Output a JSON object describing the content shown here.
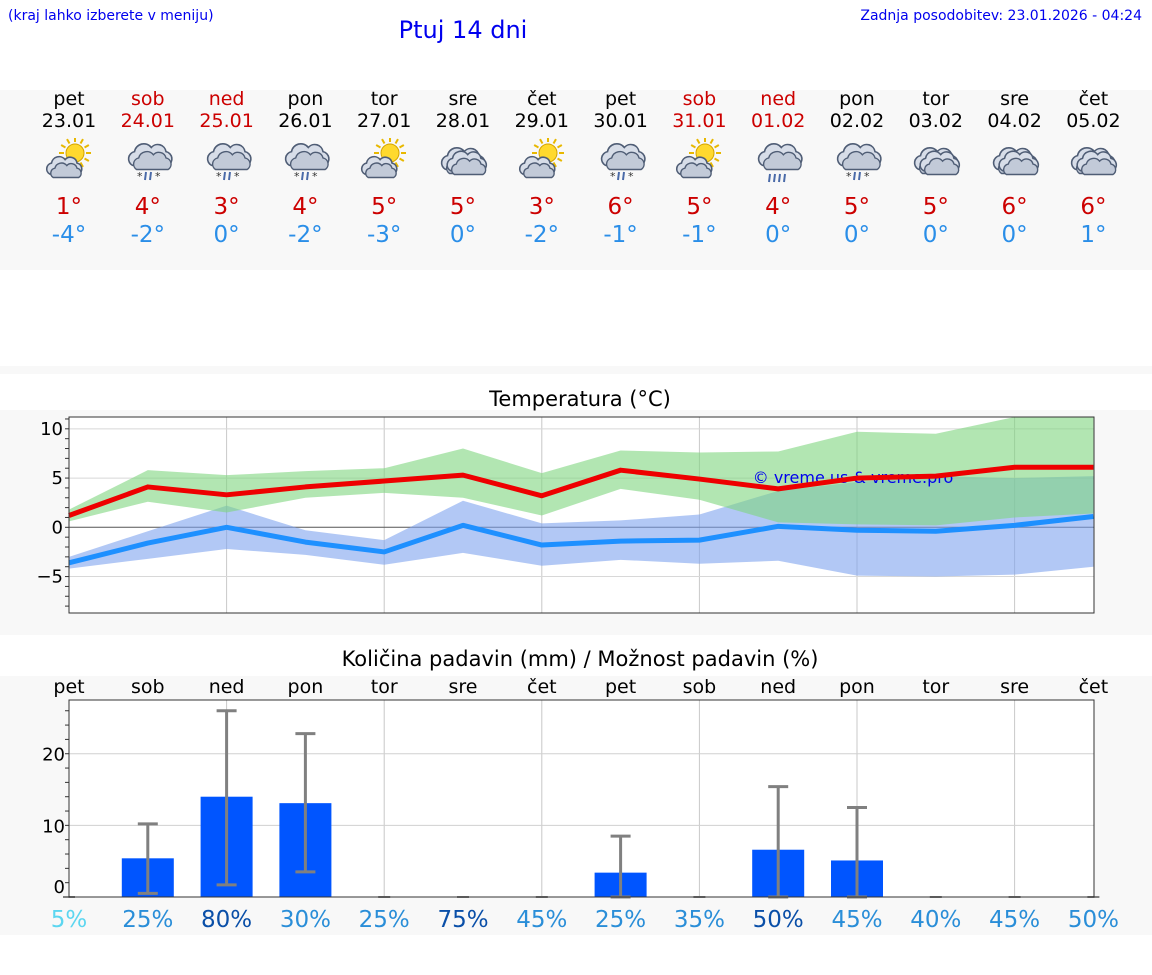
{
  "header": {
    "left_note": "(kraj lahko izberete v meniju)",
    "title": "Ptuj 14 dni",
    "last_update": "Zadnja posodobitev: 23.01.2026 - 04:24"
  },
  "colors": {
    "link": "#0000ee",
    "weekend": "#cc0000",
    "tmax": "#cc0000",
    "tmin": "#2a8ee8",
    "max_line": "#ee0000",
    "min_line": "#1e90ff",
    "max_band": "#7ed67e",
    "min_band": "#7fa4ee",
    "bar": "#0055ff",
    "error_bar": "#808080"
  },
  "days": [
    {
      "name": "pet",
      "date": "23.01",
      "weekend": false,
      "icon": "partly-cloudy-sun-icon",
      "tmax": "1°",
      "tmin": "-4°"
    },
    {
      "name": "sob",
      "date": "24.01",
      "weekend": true,
      "icon": "snow-rain-cloud-icon",
      "tmax": "4°",
      "tmin": "-2°"
    },
    {
      "name": "ned",
      "date": "25.01",
      "weekend": true,
      "icon": "snow-rain-cloud-icon",
      "tmax": "3°",
      "tmin": "0°"
    },
    {
      "name": "pon",
      "date": "26.01",
      "weekend": false,
      "icon": "snow-rain-cloud-icon",
      "tmax": "4°",
      "tmin": "-2°"
    },
    {
      "name": "tor",
      "date": "27.01",
      "weekend": false,
      "icon": "partly-cloudy-sun-icon",
      "tmax": "5°",
      "tmin": "-3°"
    },
    {
      "name": "sre",
      "date": "28.01",
      "weekend": false,
      "icon": "cloudy-icon",
      "tmax": "5°",
      "tmin": "0°"
    },
    {
      "name": "čet",
      "date": "29.01",
      "weekend": false,
      "icon": "partly-cloudy-sun-icon",
      "tmax": "3°",
      "tmin": "-2°"
    },
    {
      "name": "pet",
      "date": "30.01",
      "weekend": false,
      "icon": "snow-rain-cloud-icon",
      "tmax": "6°",
      "tmin": "-1°"
    },
    {
      "name": "sob",
      "date": "31.01",
      "weekend": true,
      "icon": "partly-cloudy-sun-icon",
      "tmax": "5°",
      "tmin": "-1°"
    },
    {
      "name": "ned",
      "date": "01.02",
      "weekend": true,
      "icon": "rain-cloud-icon",
      "tmax": "4°",
      "tmin": "0°"
    },
    {
      "name": "pon",
      "date": "02.02",
      "weekend": false,
      "icon": "snow-rain-cloud-icon",
      "tmax": "5°",
      "tmin": "0°"
    },
    {
      "name": "tor",
      "date": "03.02",
      "weekend": false,
      "icon": "cloudy-icon",
      "tmax": "5°",
      "tmin": "0°"
    },
    {
      "name": "sre",
      "date": "04.02",
      "weekend": false,
      "icon": "cloudy-icon",
      "tmax": "6°",
      "tmin": "0°"
    },
    {
      "name": "čet",
      "date": "05.02",
      "weekend": false,
      "icon": "cloudy-icon",
      "tmax": "6°",
      "tmin": "1°"
    }
  ],
  "chart_data": [
    {
      "type": "line",
      "title": "Temperatura (°C)",
      "watermark": "© vreme.us & vreme.pro",
      "xlabel": "",
      "ylabel": "",
      "ylim": [
        -8.7,
        11.2
      ],
      "yticks": [
        10,
        5,
        0,
        -5
      ],
      "ytick_labels": [
        "10",
        "5",
        "0",
        "−5"
      ],
      "grid": true,
      "x": [
        0,
        1,
        2,
        3,
        4,
        5,
        6,
        7,
        8,
        9,
        10,
        11,
        12,
        13
      ],
      "series": [
        {
          "name": "max",
          "values": [
            1.2,
            4.1,
            3.3,
            4.1,
            4.7,
            5.3,
            3.2,
            5.8,
            4.9,
            3.9,
            5.0,
            5.2,
            6.1,
            6.1
          ]
        },
        {
          "name": "min",
          "values": [
            -3.6,
            -1.6,
            0.0,
            -1.5,
            -2.5,
            0.2,
            -1.8,
            -1.4,
            -1.3,
            0.1,
            -0.3,
            -0.4,
            0.2,
            1.1
          ]
        }
      ],
      "bands": [
        {
          "name": "max_range",
          "low": [
            0.6,
            2.6,
            1.5,
            3.0,
            3.5,
            3.0,
            1.2,
            3.9,
            2.8,
            0.5,
            0.3,
            0.2,
            1.0,
            1.4
          ],
          "high": [
            1.8,
            5.8,
            5.3,
            5.7,
            6.0,
            8.0,
            5.5,
            7.8,
            7.6,
            7.7,
            9.7,
            9.5,
            11.2,
            11.2
          ]
        },
        {
          "name": "min_range",
          "low": [
            -4.2,
            -3.2,
            -2.2,
            -2.8,
            -3.8,
            -2.6,
            -3.9,
            -3.3,
            -3.7,
            -3.4,
            -4.9,
            -5.0,
            -4.8,
            -4.0
          ],
          "high": [
            -3.0,
            -0.4,
            2.2,
            -0.3,
            -1.3,
            2.7,
            0.4,
            0.7,
            1.3,
            3.7,
            4.6,
            5.2,
            5.0,
            5.2
          ]
        }
      ]
    },
    {
      "type": "bar",
      "title": "Količina padavin (mm) / Možnost padavin (%)",
      "xlabel": "",
      "ylabel": "",
      "ylim": [
        0,
        27.5
      ],
      "yticks": [
        20,
        10,
        0
      ],
      "grid": true,
      "categories": [
        "pet",
        "sob",
        "ned",
        "pon",
        "tor",
        "sre",
        "čet",
        "pet",
        "sob",
        "ned",
        "pon",
        "tor",
        "sre",
        "čet"
      ],
      "values": [
        0,
        5.4,
        14.0,
        13.1,
        0,
        0,
        0,
        3.4,
        0,
        6.6,
        5.1,
        0,
        0,
        0
      ],
      "error_low": [
        0,
        0.5,
        1.7,
        3.5,
        0,
        0,
        0,
        0,
        0,
        0,
        0,
        0,
        0,
        0
      ],
      "error_high": [
        0,
        10.2,
        26.0,
        22.8,
        0,
        0,
        0,
        8.5,
        0,
        15.4,
        12.5,
        0,
        0,
        0
      ],
      "probabilities": [
        "5%",
        "25%",
        "80%",
        "30%",
        "25%",
        "75%",
        "45%",
        "25%",
        "35%",
        "50%",
        "45%",
        "40%",
        "45%",
        "50%"
      ],
      "probability_colors": [
        "#5cd6f0",
        "#2a8ed8",
        "#0a4fa8",
        "#2a8ed8",
        "#2a8ed8",
        "#0a4fa8",
        "#2a8ed8",
        "#2a8ed8",
        "#2a8ed8",
        "#0a4fa8",
        "#2a8ed8",
        "#2a8ed8",
        "#2a8ed8",
        "#2a8ed8"
      ]
    }
  ]
}
